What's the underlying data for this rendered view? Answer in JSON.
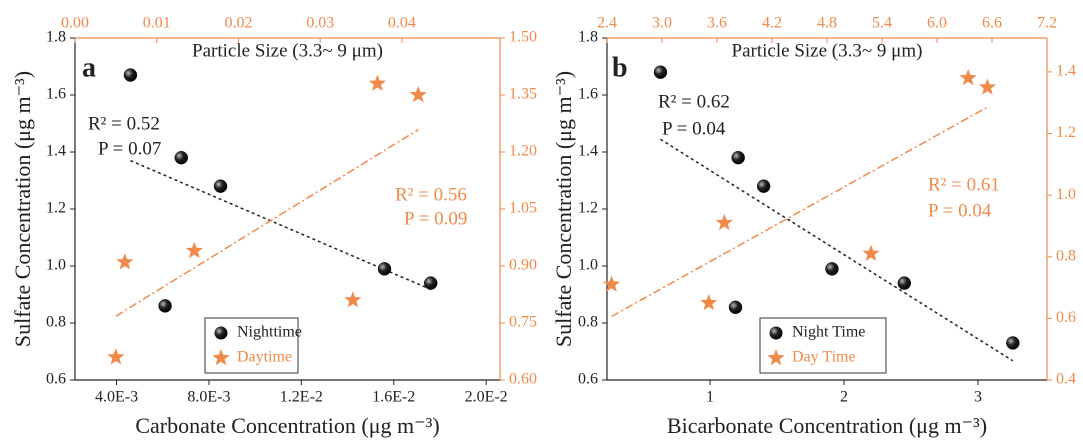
{
  "chart_data": [
    {
      "type": "scatter",
      "label": "a",
      "title": "Particle Size (3.3~ 9 μm)",
      "xlabel": "Carbonate Concentration (μg m⁻³)",
      "ylabel": "Sulfate Concentration (μg m⁻³)",
      "xlim": [
        0.0022,
        0.0206
      ],
      "xticks": [
        {
          "value": 0.004,
          "label": "4.0E-3"
        },
        {
          "value": 0.008,
          "label": "8.0E-3"
        },
        {
          "value": 0.012,
          "label": "1.2E-2"
        },
        {
          "value": 0.016,
          "label": "1.6E-2"
        },
        {
          "value": 0.02,
          "label": "2.0E-2"
        }
      ],
      "x2lim": [
        0,
        0.052
      ],
      "x2ticks": [
        {
          "value": 0,
          "label": "0.00"
        },
        0.01,
        0.02,
        0.03,
        0.04
      ],
      "ylim": [
        0.6,
        1.8
      ],
      "yticks": [
        0.6,
        0.8,
        {
          "value": 1.0,
          "label": "1.0"
        },
        1.2,
        1.4,
        1.6,
        1.8
      ],
      "y2lim": [
        0.6,
        1.5
      ],
      "y2ticks": [
        {
          "value": 0.6,
          "label": "0.60"
        },
        0.75,
        {
          "value": 0.9,
          "label": "0.90"
        },
        1.05,
        {
          "value": 1.2,
          "label": "1.20"
        },
        1.35,
        {
          "value": 1.5,
          "label": "1.50"
        }
      ],
      "series": [
        {
          "name": "Nighttime",
          "color": "#111111",
          "x": [
            0.0046,
            0.0068,
            0.0085,
            0.0061,
            0.0156,
            0.0176
          ],
          "values": [
            1.67,
            1.38,
            1.28,
            0.86,
            0.99,
            0.94
          ]
        },
        {
          "name": "Daytime",
          "color": "#f08a4b",
          "axis": "y2",
          "xaxis": "x2",
          "x": [
            0.005,
            0.0061,
            0.0146,
            0.034,
            0.037,
            0.042
          ],
          "values": [
            0.66,
            0.91,
            0.94,
            0.81,
            1.38,
            1.35
          ]
        }
      ],
      "annotations": [
        "R² = 0.52",
        "P = 0.07",
        "R² = 0.56",
        "P = 0.09"
      ]
    },
    {
      "type": "scatter",
      "label": "b",
      "title": "Particle Size (3.3~ 9 μm)",
      "xlabel": "Bicarbonate Concentration (μg m⁻³)",
      "ylabel": "Sulfate Concentration (μg m⁻³)",
      "xlim": [
        0.231,
        3.515
      ],
      "xticks": [
        1,
        2,
        3
      ],
      "x2lim": [
        2.4,
        7.2
      ],
      "x2ticks": [
        2.4,
        {
          "value": 3.0,
          "label": "3.0"
        },
        3.6,
        4.2,
        4.8,
        5.4,
        {
          "value": 6.0,
          "label": "6.0"
        },
        6.6,
        7.2
      ],
      "ylim": [
        0.6,
        1.8
      ],
      "yticks": [
        0.6,
        0.8,
        {
          "value": 1.0,
          "label": "1.0"
        },
        1.2,
        1.4,
        1.6,
        1.8
      ],
      "y2lim": [
        0.4,
        1.51
      ],
      "y2ticks": [
        0.4,
        0.6,
        0.8,
        {
          "value": 1.0,
          "label": "1.0"
        },
        1.2,
        1.4
      ],
      "series": [
        {
          "name": "Night Time",
          "color": "#111111",
          "x": [
            0.63,
            1.21,
            1.4,
            1.19,
            1.91,
            2.45,
            3.26
          ],
          "values": [
            1.68,
            1.38,
            1.28,
            0.855,
            0.99,
            0.94,
            0.73
          ]
        },
        {
          "name": "Day Time",
          "color": "#f08a4b",
          "axis": "y2",
          "xaxis": "x2",
          "x": [
            2.45,
            3.68,
            3.51,
            5.28,
            6.34,
            6.55
          ],
          "values": [
            0.71,
            0.91,
            0.65,
            0.81,
            1.38,
            1.35
          ]
        }
      ],
      "annotations": [
        "R² = 0.62",
        "P = 0.04",
        "R² = 0.61",
        "P = 0.04"
      ]
    }
  ]
}
